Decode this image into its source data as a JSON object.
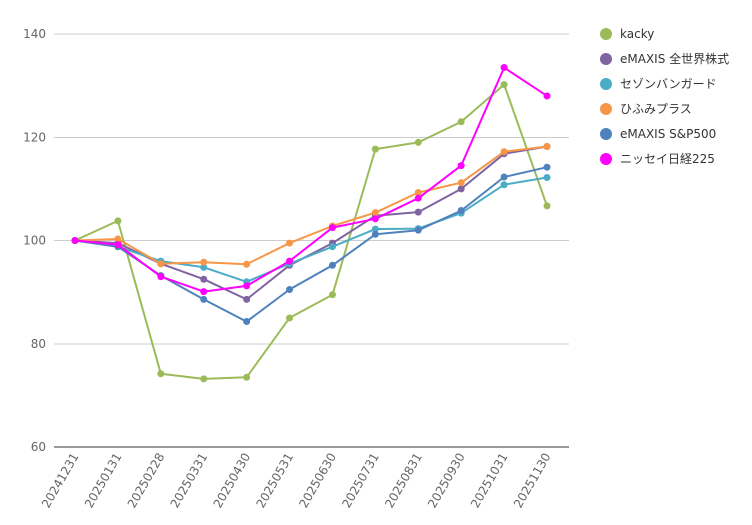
{
  "chart_data": {
    "type": "line",
    "title": "",
    "xlabel": "",
    "ylabel": "",
    "x": [
      "20241231",
      "20250131",
      "20250228",
      "20250331",
      "20250430",
      "20250531",
      "20250630",
      "20250731",
      "20250831",
      "20250930",
      "20251031",
      "20251130"
    ],
    "ylim": [
      60,
      140
    ],
    "yticks": [
      60,
      80,
      100,
      120,
      140
    ],
    "grid": true,
    "legend_position": "right",
    "series": [
      {
        "name": "kacky",
        "color": "#9bbb59",
        "values": [
          100,
          103.8,
          74.2,
          73.2,
          73.5,
          85.0,
          89.5,
          117.7,
          119.0,
          123.0,
          130.2,
          106.7
        ]
      },
      {
        "name": "eMAXIS 全世界株式",
        "color": "#8064a2",
        "values": [
          100,
          99.5,
          95.5,
          92.5,
          88.6,
          95.2,
          99.5,
          104.8,
          105.5,
          110.0,
          116.8,
          118.2
        ]
      },
      {
        "name": "セゾンバンガード",
        "color": "#4bacc6",
        "values": [
          100,
          98.8,
          96.0,
          94.8,
          92.0,
          95.5,
          98.8,
          102.2,
          102.3,
          105.3,
          110.8,
          112.2
        ]
      },
      {
        "name": "ひふみプラス",
        "color": "#f79646",
        "values": [
          100,
          100.3,
          95.5,
          95.8,
          95.4,
          99.5,
          102.8,
          105.4,
          109.3,
          111.2,
          117.2,
          118.2
        ]
      },
      {
        "name": "eMAXIS S&P500",
        "color": "#4f81bd",
        "values": [
          100,
          98.8,
          93.2,
          88.6,
          84.3,
          90.5,
          95.2,
          101.2,
          102.0,
          105.8,
          112.3,
          114.2
        ]
      },
      {
        "name": "ニッセイ日経225",
        "color": "#ff00ff",
        "values": [
          100,
          99.2,
          93.0,
          90.1,
          91.2,
          96.0,
          102.5,
          104.2,
          108.2,
          114.5,
          133.5,
          128.0
        ]
      }
    ]
  }
}
